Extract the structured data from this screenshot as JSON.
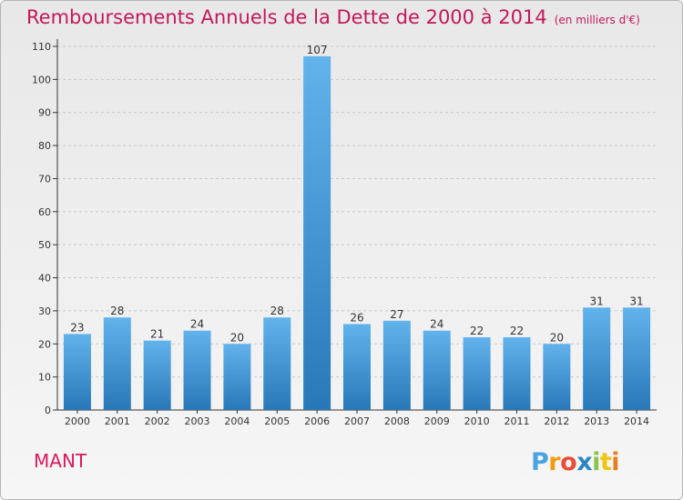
{
  "title": "Remboursements Annuels de la Dette de 2000 à 2014",
  "unit_note": "(en milliers d'€)",
  "commune": "MANT",
  "logo_text": "Proxiti",
  "colors": {
    "title": "#c2185b",
    "bar_light": "#62b3ec",
    "bar_dark": "#2878b8",
    "grid": "#c8c8c8",
    "axis": "#333333"
  },
  "chart_data": {
    "type": "bar",
    "title": "Remboursements Annuels de la Dette de 2000 à 2014",
    "subtitle": "(en milliers d'€)",
    "categories": [
      "2000",
      "2001",
      "2002",
      "2003",
      "2004",
      "2005",
      "2006",
      "2007",
      "2008",
      "2009",
      "2010",
      "2011",
      "2012",
      "2013",
      "2014"
    ],
    "values": [
      23,
      28,
      21,
      24,
      20,
      28,
      107,
      26,
      27,
      24,
      22,
      22,
      20,
      31,
      31
    ],
    "y_ticks": [
      0,
      10,
      20,
      30,
      40,
      50,
      60,
      70,
      80,
      90,
      100,
      110
    ],
    "ylim": [
      0,
      110
    ],
    "grid": true,
    "data_labels": true
  }
}
